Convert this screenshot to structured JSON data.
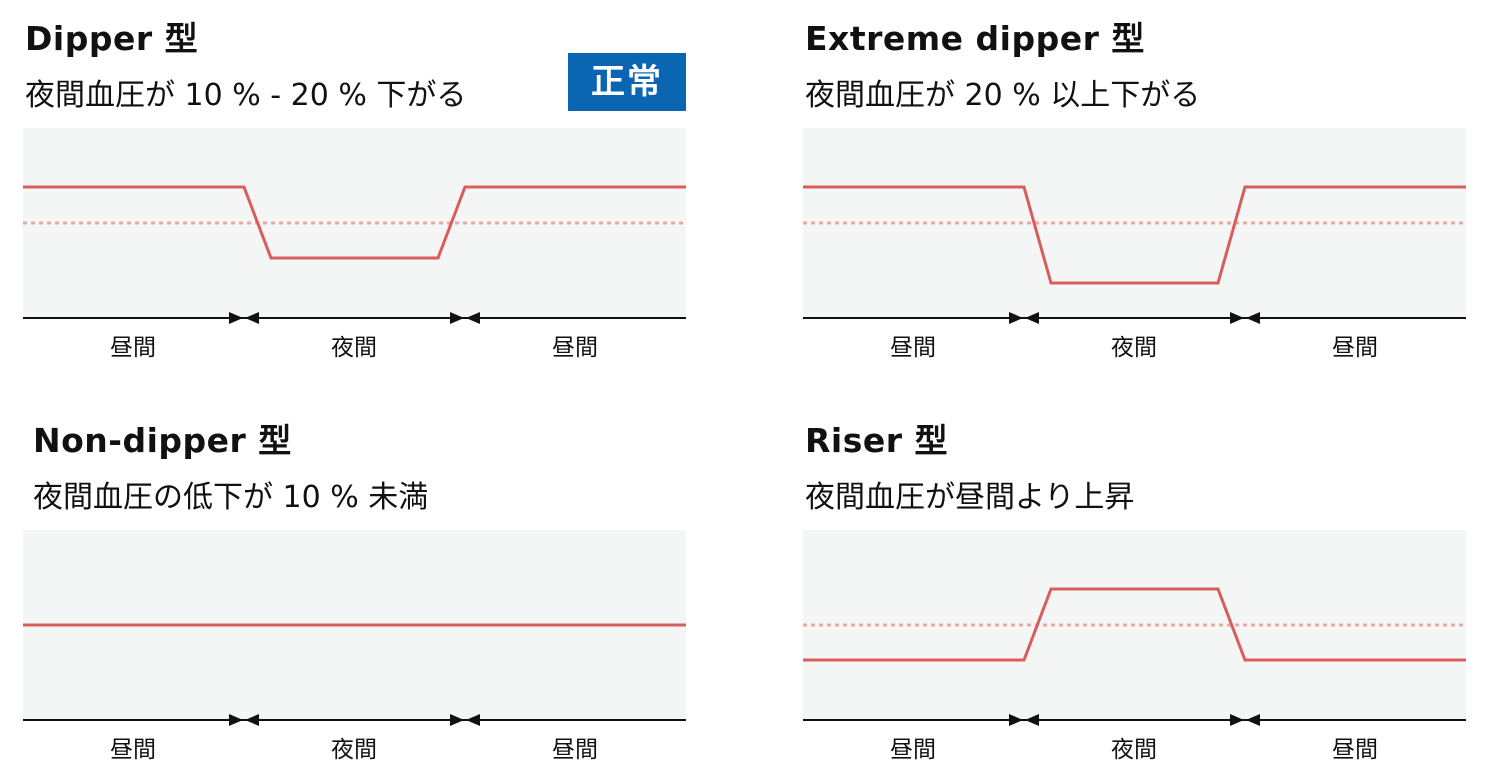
{
  "colors": {
    "profile_line": "#d95d5d",
    "reference_line": "#eea8a4",
    "plot_background": "#f4f6f5",
    "badge_background": "#0a66b3",
    "axis": "#111111"
  },
  "period_labels": [
    "昼間",
    "夜間",
    "昼間"
  ],
  "panels": [
    {
      "title": "Dipper 型",
      "subtitle": "夜間血圧が 10 % - 20 % 下がる",
      "badge": "正常",
      "profile": {
        "day_level": 1.0,
        "night_level": 0.85,
        "has_reference": true
      }
    },
    {
      "title": "Extreme dipper 型",
      "subtitle": "夜間血圧が 20 % 以上下がる",
      "badge": "",
      "profile": {
        "day_level": 1.0,
        "night_level": 0.78,
        "has_reference": true
      }
    },
    {
      "title": "Non-dipper 型",
      "subtitle": "夜間血圧の低下が 10 % 未満",
      "badge": "",
      "profile": {
        "day_level": 1.0,
        "night_level": 1.0,
        "has_reference": false
      }
    },
    {
      "title": "Riser 型",
      "subtitle": "夜間血圧が昼間より上昇",
      "badge": "",
      "profile": {
        "day_level": 1.0,
        "night_level": 1.2,
        "has_reference": true
      }
    }
  ]
}
